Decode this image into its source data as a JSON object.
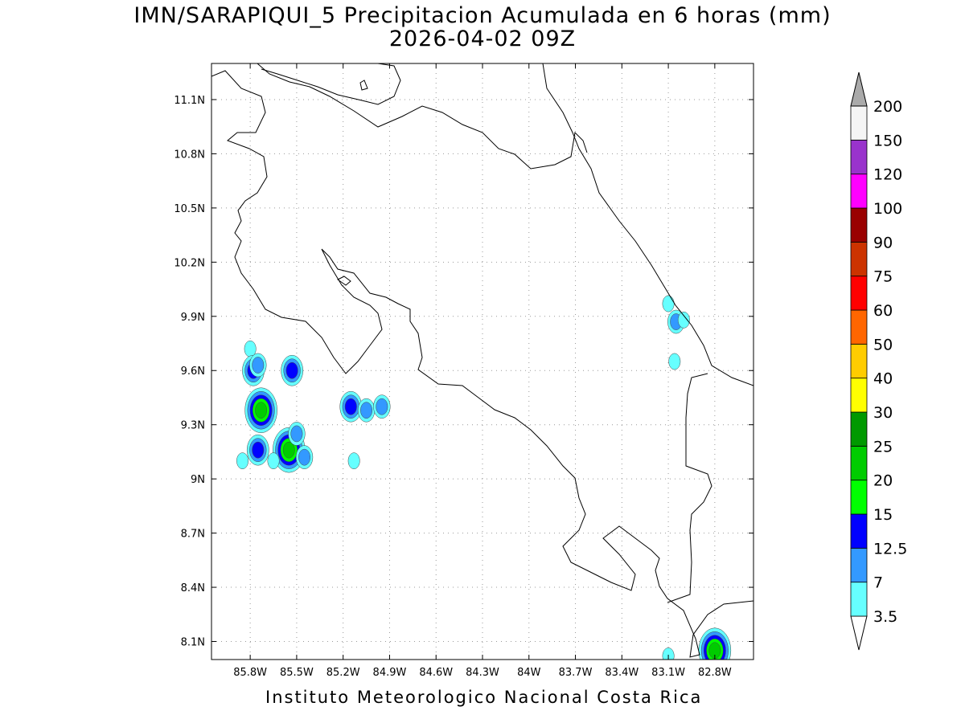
{
  "title": {
    "line1": "IMN/SARAPIQUI_5 Precipitacion Acumulada en 6 horas (mm)",
    "line2": "2026-04-02 09Z"
  },
  "footer": "Instituto Meteorologico Nacional Costa Rica",
  "map": {
    "lon_range": [
      -86.05,
      -82.55
    ],
    "lat_range": [
      8.0,
      11.3
    ],
    "lon_ticks": [
      {
        "v": -85.8,
        "label": "85.8W"
      },
      {
        "v": -85.5,
        "label": "85.5W"
      },
      {
        "v": -85.2,
        "label": "85.2W"
      },
      {
        "v": -84.9,
        "label": "84.9W"
      },
      {
        "v": -84.6,
        "label": "84.6W"
      },
      {
        "v": -84.3,
        "label": "84.3W"
      },
      {
        "v": -84.0,
        "label": "84W"
      },
      {
        "v": -83.7,
        "label": "83.7W"
      },
      {
        "v": -83.4,
        "label": "83.4W"
      },
      {
        "v": -83.1,
        "label": "83.1W"
      },
      {
        "v": -82.8,
        "label": "82.8W"
      }
    ],
    "lat_ticks": [
      {
        "v": 11.1,
        "label": "11.1N"
      },
      {
        "v": 10.8,
        "label": "10.8N"
      },
      {
        "v": 10.5,
        "label": "10.5N"
      },
      {
        "v": 10.2,
        "label": "10.2N"
      },
      {
        "v": 9.9,
        "label": "9.9N"
      },
      {
        "v": 9.6,
        "label": "9.6N"
      },
      {
        "v": 9.3,
        "label": "9.3N"
      },
      {
        "v": 9.0,
        "label": "9N"
      },
      {
        "v": 8.7,
        "label": "8.7N"
      },
      {
        "v": 8.4,
        "label": "8.4N"
      },
      {
        "v": 8.1,
        "label": "8.1N"
      }
    ],
    "grid": true
  },
  "colorbar": {
    "levels": [
      {
        "label": "3.5",
        "color": "#66ffff"
      },
      {
        "label": "7",
        "color": "#3399ff"
      },
      {
        "label": "12.5",
        "color": "#0000ff"
      },
      {
        "label": "15",
        "color": "#00ff00"
      },
      {
        "label": "20",
        "color": "#00cc00"
      },
      {
        "label": "25",
        "color": "#009900"
      },
      {
        "label": "30",
        "color": "#ffff00"
      },
      {
        "label": "40",
        "color": "#ffcc00"
      },
      {
        "label": "50",
        "color": "#ff6600"
      },
      {
        "label": "60",
        "color": "#ff0000"
      },
      {
        "label": "75",
        "color": "#cc3300"
      },
      {
        "label": "90",
        "color": "#990000"
      },
      {
        "label": "100",
        "color": "#ff00ff"
      },
      {
        "label": "120",
        "color": "#9933cc"
      },
      {
        "label": "150",
        "color": "#f5f5f5"
      },
      {
        "label": "200",
        "color": "#aaaaaa"
      }
    ]
  },
  "precip_cells": [
    {
      "lon": -85.8,
      "lat": 9.72,
      "level": 1
    },
    {
      "lon": -85.78,
      "lat": 9.6,
      "level": 3
    },
    {
      "lon": -85.75,
      "lat": 9.63,
      "level": 2
    },
    {
      "lon": -85.53,
      "lat": 9.6,
      "level": 3
    },
    {
      "lon": -85.73,
      "lat": 9.38,
      "level": 5
    },
    {
      "lon": -85.55,
      "lat": 9.16,
      "level": 5
    },
    {
      "lon": -85.5,
      "lat": 9.25,
      "level": 2
    },
    {
      "lon": -85.45,
      "lat": 9.12,
      "level": 2
    },
    {
      "lon": -85.75,
      "lat": 9.16,
      "level": 3
    },
    {
      "lon": -85.85,
      "lat": 9.1,
      "level": 1
    },
    {
      "lon": -85.65,
      "lat": 9.1,
      "level": 1
    },
    {
      "lon": -85.15,
      "lat": 9.4,
      "level": 3
    },
    {
      "lon": -85.05,
      "lat": 9.38,
      "level": 2
    },
    {
      "lon": -84.95,
      "lat": 9.4,
      "level": 2
    },
    {
      "lon": -85.13,
      "lat": 9.1,
      "level": 1
    },
    {
      "lon": -83.05,
      "lat": 9.87,
      "level": 2
    },
    {
      "lon": -83.0,
      "lat": 9.88,
      "level": 1
    },
    {
      "lon": -83.06,
      "lat": 9.65,
      "level": 1
    },
    {
      "lon": -83.1,
      "lat": 9.97,
      "level": 1
    },
    {
      "lon": -82.8,
      "lat": 8.05,
      "level": 5
    },
    {
      "lon": -83.1,
      "lat": 8.02,
      "level": 1
    }
  ]
}
